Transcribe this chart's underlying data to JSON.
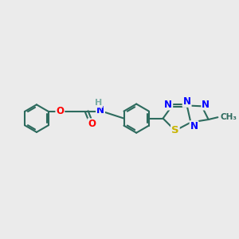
{
  "bg_color": "#ebebeb",
  "bond_color": "#2d6b5e",
  "bond_lw": 1.5,
  "atom_colors": {
    "N": "#0000ff",
    "S": "#c8b400",
    "O": "#ff0000",
    "H": "#7aada5"
  },
  "font_size_atom": 8.5,
  "font_size_methyl": 7.5,
  "figsize": [
    3.0,
    3.0
  ],
  "dpi": 100
}
